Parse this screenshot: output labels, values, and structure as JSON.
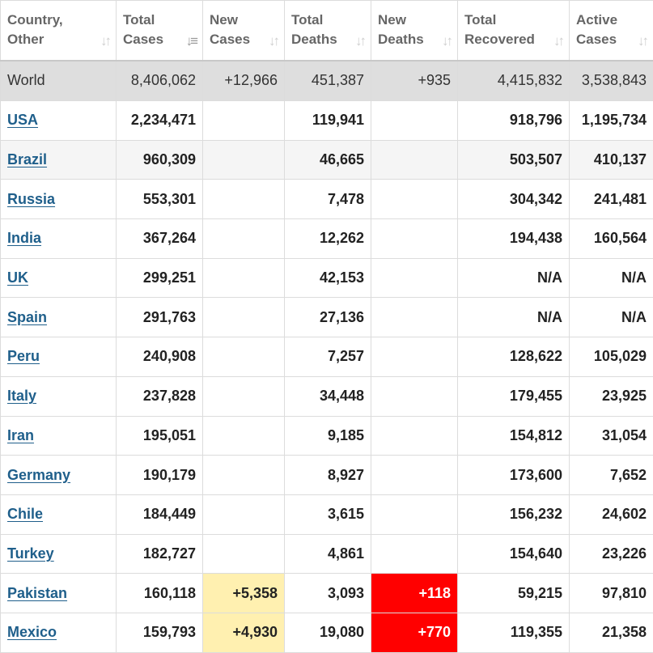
{
  "headers": [
    {
      "line1": "Country,",
      "line2": "Other",
      "sort_active": false
    },
    {
      "line1": "Total",
      "line2": "Cases",
      "sort_active": true
    },
    {
      "line1": "New",
      "line2": "Cases",
      "sort_active": false
    },
    {
      "line1": "Total",
      "line2": "Deaths",
      "sort_active": false
    },
    {
      "line1": "New",
      "line2": "Deaths",
      "sort_active": false
    },
    {
      "line1": "Total",
      "line2": "Recovered",
      "sort_active": false
    },
    {
      "line1": "Active",
      "line2": "Cases",
      "sort_active": false
    }
  ],
  "rows": [
    {
      "country": "World",
      "total_cases": "8,406,062",
      "new_cases": "+12,966",
      "total_deaths": "451,387",
      "new_deaths": "+935",
      "total_recovered": "4,415,832",
      "active_cases": "3,538,843",
      "is_world": true
    },
    {
      "country": "USA",
      "total_cases": "2,234,471",
      "new_cases": "",
      "total_deaths": "119,941",
      "new_deaths": "",
      "total_recovered": "918,796",
      "active_cases": "1,195,734"
    },
    {
      "country": "Brazil",
      "total_cases": "960,309",
      "new_cases": "",
      "total_deaths": "46,665",
      "new_deaths": "",
      "total_recovered": "503,507",
      "active_cases": "410,137"
    },
    {
      "country": "Russia",
      "total_cases": "553,301",
      "new_cases": "",
      "total_deaths": "7,478",
      "new_deaths": "",
      "total_recovered": "304,342",
      "active_cases": "241,481"
    },
    {
      "country": "India",
      "total_cases": "367,264",
      "new_cases": "",
      "total_deaths": "12,262",
      "new_deaths": "",
      "total_recovered": "194,438",
      "active_cases": "160,564"
    },
    {
      "country": "UK",
      "total_cases": "299,251",
      "new_cases": "",
      "total_deaths": "42,153",
      "new_deaths": "",
      "total_recovered": "N/A",
      "active_cases": "N/A"
    },
    {
      "country": "Spain",
      "total_cases": "291,763",
      "new_cases": "",
      "total_deaths": "27,136",
      "new_deaths": "",
      "total_recovered": "N/A",
      "active_cases": "N/A"
    },
    {
      "country": "Peru",
      "total_cases": "240,908",
      "new_cases": "",
      "total_deaths": "7,257",
      "new_deaths": "",
      "total_recovered": "128,622",
      "active_cases": "105,029"
    },
    {
      "country": "Italy",
      "total_cases": "237,828",
      "new_cases": "",
      "total_deaths": "34,448",
      "new_deaths": "",
      "total_recovered": "179,455",
      "active_cases": "23,925"
    },
    {
      "country": "Iran",
      "total_cases": "195,051",
      "new_cases": "",
      "total_deaths": "9,185",
      "new_deaths": "",
      "total_recovered": "154,812",
      "active_cases": "31,054"
    },
    {
      "country": "Germany",
      "total_cases": "190,179",
      "new_cases": "",
      "total_deaths": "8,927",
      "new_deaths": "",
      "total_recovered": "173,600",
      "active_cases": "7,652"
    },
    {
      "country": "Chile",
      "total_cases": "184,449",
      "new_cases": "",
      "total_deaths": "3,615",
      "new_deaths": "",
      "total_recovered": "156,232",
      "active_cases": "24,602"
    },
    {
      "country": "Turkey",
      "total_cases": "182,727",
      "new_cases": "",
      "total_deaths": "4,861",
      "new_deaths": "",
      "total_recovered": "154,640",
      "active_cases": "23,226"
    },
    {
      "country": "Pakistan",
      "total_cases": "160,118",
      "new_cases": "+5,358",
      "total_deaths": "3,093",
      "new_deaths": "+118",
      "total_recovered": "59,215",
      "active_cases": "97,810"
    },
    {
      "country": "Mexico",
      "total_cases": "159,793",
      "new_cases": "+4,930",
      "total_deaths": "19,080",
      "new_deaths": "+770",
      "total_recovered": "119,355",
      "active_cases": "21,358"
    }
  ],
  "icons": {
    "sort": "sort-arrows-icon",
    "sort_active": "sort-descending-icon"
  },
  "colors": {
    "link": "#1f5f8b",
    "world_row_bg": "#dedede",
    "new_cases_highlight": "#fff0b0",
    "new_deaths_highlight": "#ff0000"
  }
}
